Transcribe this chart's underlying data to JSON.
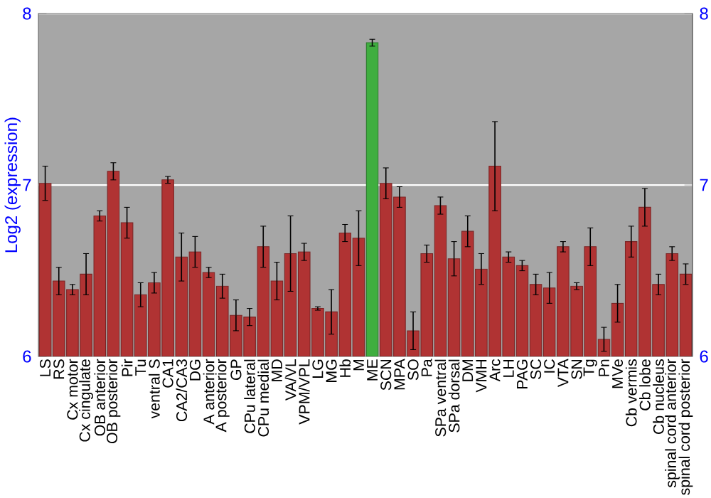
{
  "chart_data": {
    "type": "bar",
    "ylabel": "Log2 (expression)",
    "categories": [
      "LS",
      "RS",
      "Cx motor",
      "Cx cingulate",
      "OB anterior",
      "OB posterior",
      "Pir",
      "Tu",
      "ventral S",
      "CA1",
      "CA2/CA3",
      "DG",
      "A anterior",
      "A posterior",
      "GP",
      "CPu lateral",
      "CPu medial",
      "MD",
      "VA/VL",
      "VPM/VPL",
      "LG",
      "MG",
      "Hb",
      "M",
      "ME",
      "SCN",
      "MPA",
      "SO",
      "Pa",
      "SPa ventral",
      "SPa dorsal",
      "DM",
      "VMH",
      "Arc",
      "LH",
      "PAG",
      "SC",
      "IC",
      "VTA",
      "SN",
      "Tg",
      "Pn",
      "MVe",
      "Cb vermis",
      "Cb lobe",
      "Cb nucleus",
      "spinal cord anterior",
      "spinal cord posterior"
    ],
    "values": [
      7.01,
      6.44,
      6.39,
      6.48,
      6.82,
      7.08,
      6.78,
      6.36,
      6.43,
      7.03,
      6.58,
      6.61,
      6.49,
      6.41,
      6.24,
      6.23,
      6.64,
      6.44,
      6.6,
      6.61,
      6.28,
      6.26,
      6.72,
      6.69,
      7.83,
      7.01,
      6.93,
      6.15,
      6.6,
      6.88,
      6.57,
      6.73,
      6.51,
      7.11,
      6.58,
      6.53,
      6.42,
      6.4,
      6.64,
      6.41,
      6.64,
      6.1,
      6.31,
      6.67,
      6.87,
      6.42,
      6.6,
      6.48
    ],
    "errors": [
      0.1,
      0.08,
      0.03,
      0.12,
      0.03,
      0.05,
      0.09,
      0.07,
      0.06,
      0.02,
      0.14,
      0.09,
      0.03,
      0.07,
      0.09,
      0.05,
      0.12,
      0.11,
      0.22,
      0.05,
      0.01,
      0.13,
      0.05,
      0.16,
      0.02,
      0.09,
      0.06,
      0.11,
      0.05,
      0.05,
      0.1,
      0.09,
      0.09,
      0.26,
      0.03,
      0.03,
      0.06,
      0.09,
      0.03,
      0.02,
      0.11,
      0.07,
      0.11,
      0.09,
      0.11,
      0.06,
      0.04,
      0.06
    ],
    "colors": [
      "#b03333",
      "#b03333",
      "#b03333",
      "#b03333",
      "#b03333",
      "#b03333",
      "#b03333",
      "#b03333",
      "#b03333",
      "#b03333",
      "#b03333",
      "#b03333",
      "#b03333",
      "#b03333",
      "#b03333",
      "#b03333",
      "#b03333",
      "#b03333",
      "#b03333",
      "#b03333",
      "#b03333",
      "#b03333",
      "#b03333",
      "#b03333",
      "#3fae3f",
      "#b03333",
      "#b03333",
      "#b03333",
      "#b03333",
      "#b03333",
      "#b03333",
      "#b03333",
      "#b03333",
      "#b03333",
      "#b03333",
      "#b03333",
      "#b03333",
      "#b03333",
      "#b03333",
      "#b03333",
      "#b03333",
      "#b03333",
      "#b03333",
      "#b03333",
      "#b03333",
      "#b03333",
      "#b03333",
      "#b03333"
    ],
    "ylim": [
      6,
      8
    ],
    "yticks": [
      6,
      7,
      8
    ],
    "y2lim": [
      6,
      8
    ],
    "y2ticks": [
      6,
      7,
      8
    ],
    "grid": "y"
  }
}
